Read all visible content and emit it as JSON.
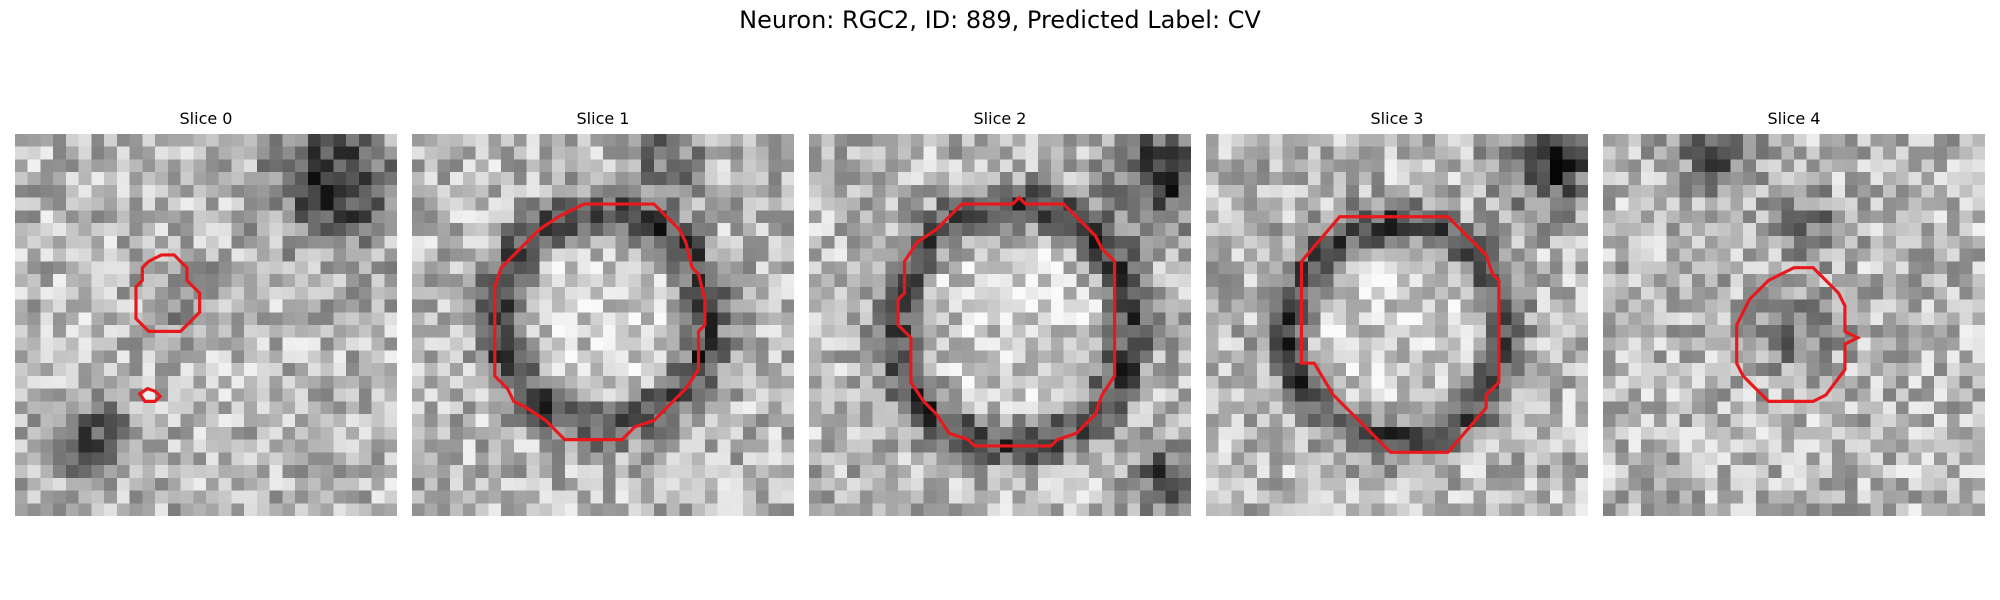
{
  "figure": {
    "title": "Neuron: RGC2, ID: 889, Predicted Label: CV"
  },
  "contour_color": "#e8191c",
  "slices": [
    {
      "title": "Slice 0",
      "seed": 11,
      "structure": "small-blob"
    },
    {
      "title": "Slice 1",
      "seed": 23,
      "structure": "ring"
    },
    {
      "title": "Slice 2",
      "seed": 37,
      "structure": "ring"
    },
    {
      "title": "Slice 3",
      "seed": 51,
      "structure": "ring"
    },
    {
      "title": "Slice 4",
      "seed": 67,
      "structure": "small-blob"
    }
  ]
}
